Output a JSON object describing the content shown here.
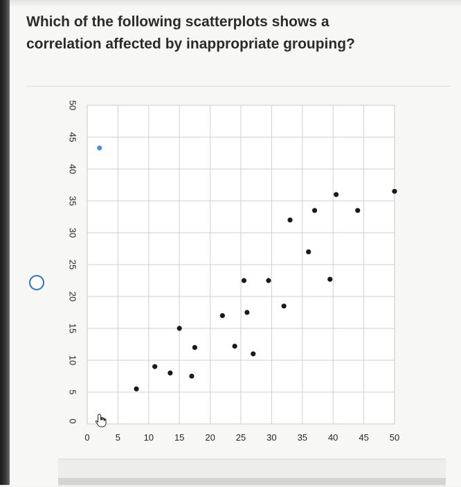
{
  "question": {
    "text_line1": "Which of the following scatterplots shows a",
    "text_line2": "correlation affected by inappropriate grouping?"
  },
  "colors": {
    "radio": "#2b6fd6",
    "point": "#1a1a1a",
    "highlight_point": "#4a90d9",
    "grid": "#cfcfcf"
  },
  "chart_data": {
    "type": "scatter",
    "xlim": [
      0,
      50
    ],
    "ylim": [
      0,
      50
    ],
    "x_ticks": [
      "0",
      "5",
      "10",
      "15",
      "20",
      "25",
      "30",
      "35",
      "40",
      "45",
      "50"
    ],
    "y_ticks": [
      "5",
      "10",
      "15",
      "20",
      "25",
      "30",
      "35",
      "40",
      "45",
      "50"
    ],
    "y_zero_label": "0",
    "grid": true,
    "points": [
      {
        "x": 2,
        "y": 43.3,
        "highlight": true
      },
      {
        "x": 8,
        "y": 5.5
      },
      {
        "x": 11,
        "y": 9
      },
      {
        "x": 13.5,
        "y": 8
      },
      {
        "x": 15,
        "y": 15
      },
      {
        "x": 17,
        "y": 7.5
      },
      {
        "x": 17.5,
        "y": 12
      },
      {
        "x": 22,
        "y": 17
      },
      {
        "x": 24,
        "y": 12.2
      },
      {
        "x": 25.5,
        "y": 22.5
      },
      {
        "x": 26,
        "y": 17.5
      },
      {
        "x": 27,
        "y": 11
      },
      {
        "x": 29.5,
        "y": 22.5
      },
      {
        "x": 32,
        "y": 18.5
      },
      {
        "x": 33,
        "y": 32
      },
      {
        "x": 36,
        "y": 27
      },
      {
        "x": 37,
        "y": 33.5
      },
      {
        "x": 39.5,
        "y": 22.7
      },
      {
        "x": 40.5,
        "y": 36
      },
      {
        "x": 44,
        "y": 33.5
      },
      {
        "x": 50,
        "y": 36.5
      }
    ]
  },
  "cursor_icon": "hand-pointer-icon"
}
